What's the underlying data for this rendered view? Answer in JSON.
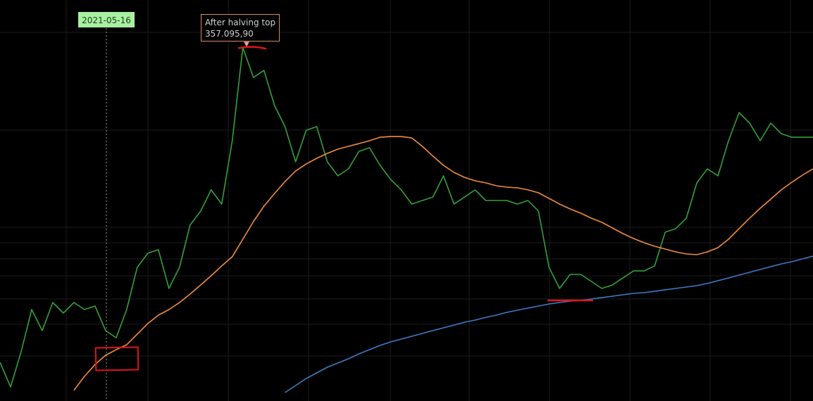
{
  "chart_data": {
    "type": "line",
    "crosshair_label": "2021-05-16",
    "annotations": [
      {
        "text": "After halving top",
        "value": 357095.9,
        "value_label": "357.095,90"
      }
    ],
    "ylim": [
      0,
      405000
    ],
    "categories": [
      null,
      null,
      null,
      null,
      null,
      null,
      null,
      null,
      null,
      null,
      null,
      null,
      null,
      null,
      null,
      null,
      null,
      null,
      null,
      null,
      null,
      null,
      null,
      null,
      null,
      null,
      null,
      null,
      null,
      null,
      null,
      null,
      null,
      null,
      null,
      null,
      null,
      null,
      null,
      null,
      null,
      null,
      null,
      null,
      null,
      null,
      null,
      null,
      null,
      null,
      null,
      null,
      null,
      null,
      null,
      null,
      null,
      null,
      null,
      null,
      null,
      null,
      null,
      null,
      null,
      null,
      null,
      null,
      null,
      null,
      null,
      null,
      null,
      null,
      null,
      null,
      null,
      null
    ],
    "series": [
      {
        "color": "#34a03a",
        "values": [
          39100,
          14200,
          49700,
          92400,
          71100,
          99500,
          88800,
          99500,
          92400,
          95900,
          71100,
          63900,
          92400,
          135000,
          149200,
          152800,
          113700,
          135000,
          177600,
          191800,
          213200,
          198900,
          262900,
          357100,
          326800,
          333900,
          298400,
          277100,
          241600,
          273500,
          277100,
          241600,
          227400,
          234500,
          252200,
          255800,
          238000,
          223800,
          213200,
          198900,
          202500,
          206000,
          227400,
          198900,
          206000,
          213200,
          202500,
          202500,
          202500,
          198900,
          202500,
          191800,
          135000,
          113700,
          127900,
          127900,
          120800,
          113700,
          117200,
          124300,
          131400,
          131400,
          136400,
          170500,
          174100,
          184700,
          220300,
          234500,
          227400,
          262900,
          291300,
          280600,
          262900,
          280600,
          270000,
          266400,
          266400,
          266400
        ]
      },
      {
        "color": "#f28c3e",
        "values": [
          null,
          null,
          null,
          null,
          null,
          null,
          null,
          10700,
          24900,
          36900,
          46200,
          51900,
          56800,
          67500,
          78200,
          86700,
          92400,
          99500,
          108000,
          117200,
          126500,
          136400,
          145700,
          163400,
          181200,
          196800,
          209600,
          221700,
          232300,
          239400,
          245100,
          250100,
          254400,
          257200,
          260000,
          262900,
          266400,
          267100,
          267100,
          265700,
          257200,
          247300,
          238000,
          230900,
          225900,
          222400,
          220300,
          217400,
          216000,
          215300,
          213200,
          210300,
          204600,
          198900,
          194000,
          189700,
          184700,
          180500,
          174800,
          169100,
          164100,
          159900,
          156300,
          153500,
          150600,
          148500,
          147800,
          150600,
          154900,
          163400,
          174100,
          184700,
          194700,
          203900,
          213200,
          221000,
          228100,
          234500
        ]
      },
      {
        "color": "#3d7cc6",
        "values": [
          null,
          null,
          null,
          null,
          null,
          null,
          null,
          null,
          null,
          null,
          null,
          null,
          null,
          null,
          null,
          null,
          null,
          null,
          null,
          null,
          null,
          null,
          null,
          null,
          null,
          null,
          null,
          8500,
          15600,
          22700,
          28400,
          34100,
          38400,
          42600,
          47600,
          51900,
          56100,
          59700,
          62500,
          65400,
          68200,
          71100,
          73900,
          76700,
          79600,
          81700,
          84500,
          86700,
          89500,
          91700,
          93800,
          95900,
          98000,
          99500,
          100900,
          101600,
          103000,
          104400,
          105900,
          107300,
          108700,
          109400,
          110800,
          112300,
          113700,
          115100,
          116500,
          118700,
          121500,
          124300,
          127200,
          130000,
          132900,
          135700,
          138500,
          140700,
          143500,
          146400
        ]
      }
    ]
  }
}
